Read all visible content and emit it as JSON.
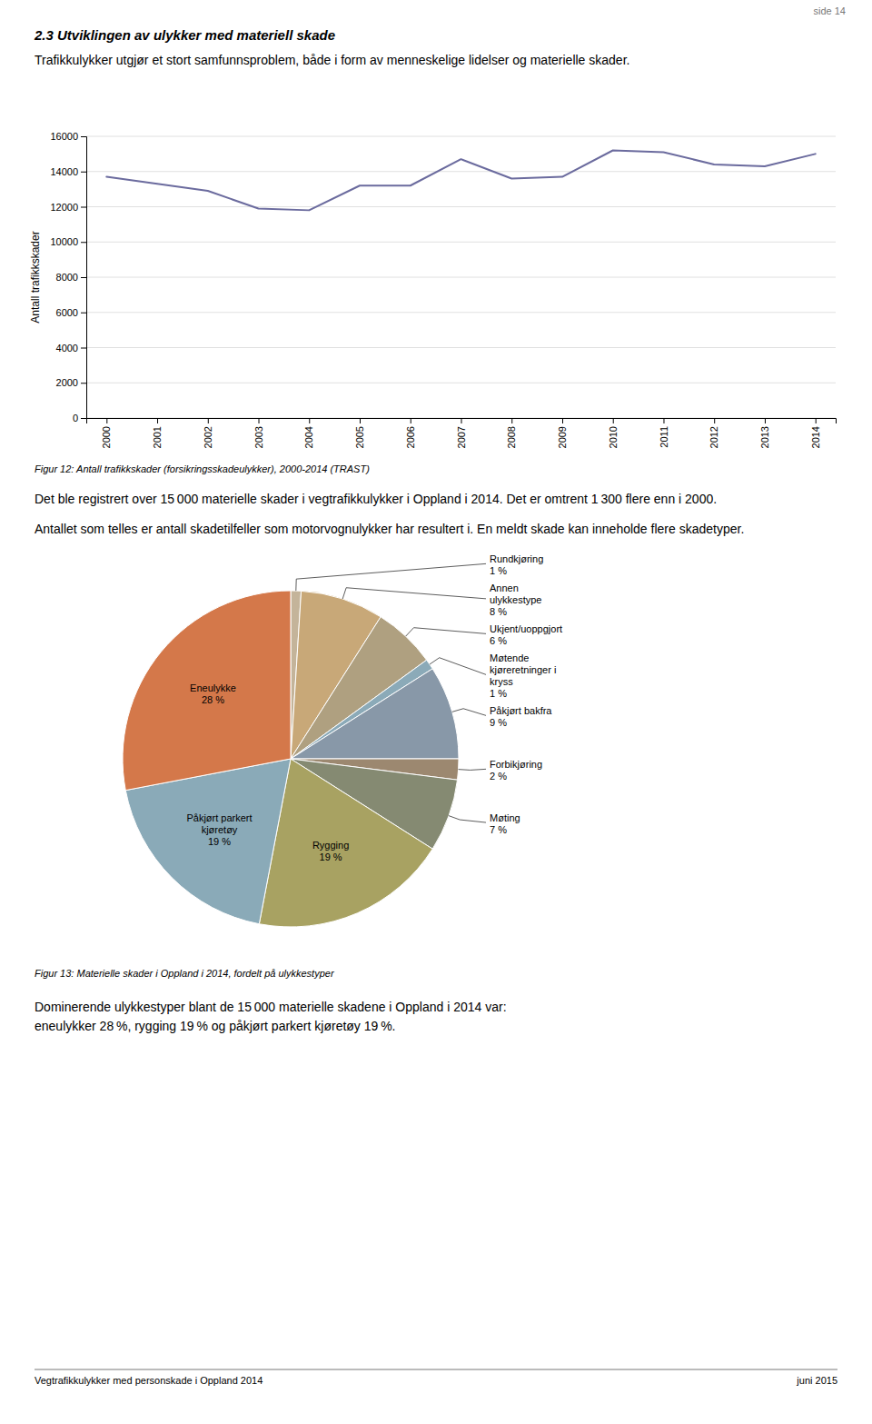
{
  "page_number": "side 14",
  "heading": "2.3 Utviklingen av ulykker med materiell skade",
  "intro_text": "Trafikkulykker utgjør et stort samfunnsproblem, både i form av menneskelige lidelser og materielle skader.",
  "body_text1": "Det ble registrert over 15 000 materielle skader i vegtrafikkulykker i Oppland i 2014. Det er omtrent 1 300 flere enn i 2000.",
  "body_text2": "Antallet som telles er antall skadetilfeller som motorvognulykker har resultert i. En meldt skade kan inneholde flere skadetyper.",
  "body_text3": "Dominerende ulykkestyper blant de 15 000 materielle skadene i Oppland i 2014 var:\neneulykker 28 %, rygging 19 % og påkjørt parkert kjøretøy 19 %.",
  "footer_left": "Vegtrafikkulykker med personskade i Oppland 2014",
  "footer_right": "juni 2015",
  "chart_data": [
    {
      "type": "line",
      "title": "Figur 12: Antall trafikkskader (forsikringsskadeulykker), 2000-2014 (TRAST)",
      "x": [
        2000,
        2001,
        2002,
        2003,
        2004,
        2005,
        2006,
        2007,
        2008,
        2009,
        2010,
        2011,
        2012,
        2013,
        2014
      ],
      "values": [
        13700,
        13300,
        12900,
        11900,
        11800,
        13200,
        13200,
        14700,
        13600,
        13700,
        15200,
        15100,
        14400,
        14300,
        15000
      ],
      "ylabel": "Antall trafikkskader",
      "color": "#6B6B9E",
      "xlim": [
        1999.6,
        2014.4
      ],
      "xticks": [
        2000,
        2001,
        2002,
        2003,
        2004,
        2005,
        2006,
        2007,
        2008,
        2009,
        2010,
        2011,
        2012,
        2013,
        2014
      ],
      "ylim": [
        0,
        16000
      ],
      "yticks": [
        0,
        2000,
        4000,
        6000,
        8000,
        10000,
        12000,
        14000,
        16000
      ],
      "grid": true
    },
    {
      "type": "pie",
      "title": "Figur 13: Materielle skader i Oppland i 2014, fordelt på ulykkestyper",
      "categories": [
        "Rundkjøring",
        "Annen\nulykkestype",
        "Ukjent/uoppgjort",
        "Møtende\nkjøreretninger i\nkryss",
        "Påkjørt bakfra",
        "Forbikjøring",
        "Møting",
        "Rygging",
        "Påkjørt parkert\nkjøretøy",
        "Eneulykke"
      ],
      "values": [
        1,
        8,
        6,
        1,
        9,
        2,
        7,
        19,
        19,
        28
      ],
      "value_labels": [
        "1 %",
        "8 %",
        "6 %",
        "1 %",
        "9 %",
        "2 %",
        "7 %",
        "19 %",
        "19 %",
        "28 %"
      ],
      "colors": [
        "#C4B49A",
        "#C8A878",
        "#AFA080",
        "#8BAAB8",
        "#8898A8",
        "#9C8870",
        "#858A72",
        "#A8A262",
        "#8AAAB8",
        "#D4784A"
      ],
      "data_labels": true
    }
  ]
}
